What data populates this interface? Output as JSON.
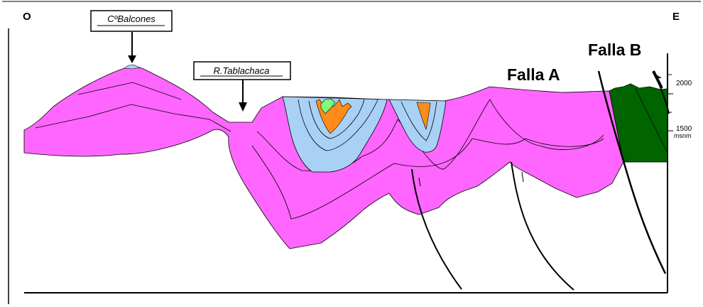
{
  "orientation": {
    "west": "O",
    "east": "E"
  },
  "callouts": {
    "peak": "CºBalcones",
    "river": "R.Tablachaca"
  },
  "faults": {
    "a": "Falla A",
    "b": "Falla B"
  },
  "scale": {
    "tick_upper": "2000",
    "tick_mid": "1500",
    "unit": "msnm"
  },
  "colors": {
    "magenta_unit": "#ff66ff",
    "lightblue_unit": "#a9d0f5",
    "orange_unit": "#ff8c1a",
    "lightgreen_unit": "#7dff7d",
    "darkgreen_unit": "#006400"
  }
}
